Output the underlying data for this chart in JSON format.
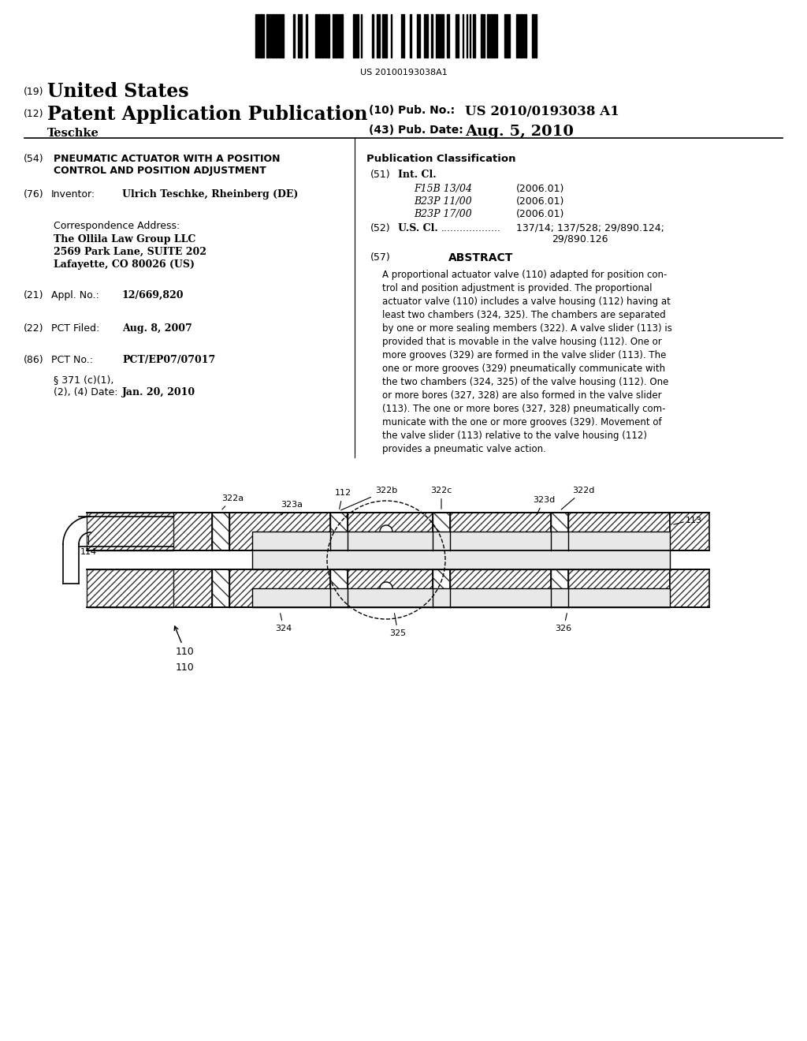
{
  "background_color": "#ffffff",
  "barcode_text": "US 20100193038A1",
  "header": {
    "country_num": "(19)",
    "country": "United States",
    "type_num": "(12)",
    "type": "Patent Application Publication",
    "pub_num_label": "(10) Pub. No.:",
    "pub_num": "US 2010/0193038 A1",
    "inventor_surname": "Teschke",
    "pub_date_label": "(43) Pub. Date:",
    "pub_date": "Aug. 5, 2010"
  },
  "left_col": {
    "title_num": "(54)",
    "title": "PNEUMATIC ACTUATOR WITH A POSITION\nCONTROL AND POSITION ADJUSTMENT",
    "inventor_num": "(76)",
    "inventor_label": "Inventor:",
    "inventor_name": "Ulrich Teschke, Rheinberg (DE)",
    "corr_label": "Correspondence Address:",
    "corr_line1": "The Ollila Law Group LLC",
    "corr_line2": "2569 Park Lane, SUITE 202",
    "corr_line3": "Lafayette, CO 80026 (US)",
    "appl_num": "(21)",
    "appl_label": "Appl. No.:",
    "appl_value": "12/669,820",
    "pct_filed_num": "(22)",
    "pct_filed_label": "PCT Filed:",
    "pct_filed_value": "Aug. 8, 2007",
    "pct_no_num": "(86)",
    "pct_no_label": "PCT No.:",
    "pct_no_value": "PCT/EP07/07017",
    "section371": "§ 371 (c)(1),",
    "section371b": "(2), (4) Date:",
    "section371v": "Jan. 20, 2010"
  },
  "right_col": {
    "pub_class_title": "Publication Classification",
    "int_cl_num": "(51)",
    "int_cl_label": "Int. Cl.",
    "class1_code": "F15B 13/04",
    "class1_date": "(2006.01)",
    "class2_code": "B23P 11/00",
    "class2_date": "(2006.01)",
    "class3_code": "B23P 17/00",
    "class3_date": "(2006.01)",
    "us_cl_num": "(52)",
    "us_cl_label": "U.S. Cl.",
    "us_cl_value": "137/14; 137/528; 29/890.124;\n                              29/890.126",
    "abstract_num": "(57)",
    "abstract_title": "ABSTRACT",
    "abstract_text": "A proportional actuator valve (110) adapted for position con-\ntrol and position adjustment is provided. The proportional\nactuator valve (110) includes a valve housing (112) having at\nleast two chambers (324, 325). The chambers are separated\nby one or more sealing members (322). A valve slider (113) is\nprovided that is movable in the valve housing (112). One or\nmore grooves (329) are formed in the valve slider (113). The\none or more grooves (329) pneumatically communicate with\nthe two chambers (324, 325) of the valve housing (112). One\nor more bores (327, 328) are also formed in the valve slider\n(113). The one or more bores (327, 328) pneumatically com-\nmunicate with the one or more grooves (329). Movement of\nthe valve slider (113) relative to the valve housing (112)\nprovides a pneumatic valve action."
  }
}
